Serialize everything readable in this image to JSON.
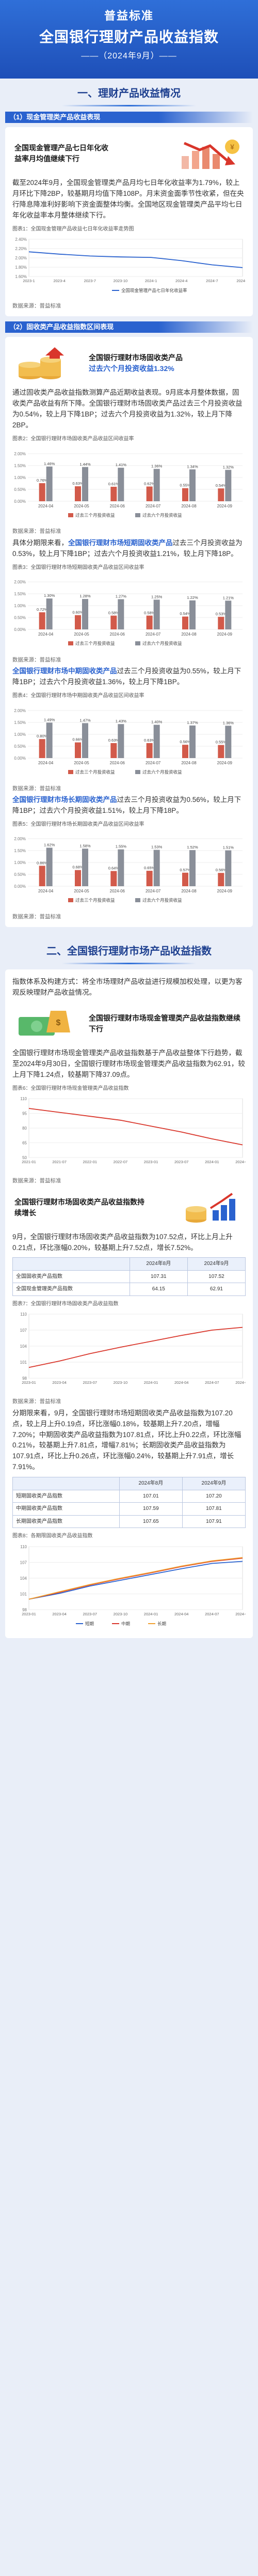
{
  "header": {
    "line1": "普益标准",
    "line2": "全国银行理财产品收益指数",
    "line3": "——（2024年9月）——"
  },
  "section1": {
    "title": "一、理财产品收益情况",
    "sub1": {
      "label": "（1）现金管理类产品收益表现",
      "feature": "全国现金管理产品七日年化收益率月均值继续下行",
      "body": "截至2024年9月，全国现金管理类产品月均七日年化收益率为1.79%，较上月环比下降2BP，较基期月均值下降108P。月末资金面季节性收紧，但在央行降息降准利好影响下资金面整体均衡。全国地区现金管理类产品平均七日年化收益率本月整体继续下行。",
      "fig_title": "图表1：全国现金管理产品收益七日年化收益率走势图",
      "source": "数据来源：普益标准"
    },
    "sub2": {
      "label": "（2）固收类产品收益指数区间表现",
      "feature_a": "全国银行理财市场固收类产品",
      "feature_b": "过去六个月投资收益1.32%",
      "body": "通过固收类产品收益指数测算产品近期收益表现。9月底本月整体数据，固收类产品收益有所下降。全国银行理财市场固收类产品过去三个月投资收益为0.54%，较上月下降1BP；过去六个月投资收益为1.32%，较上月下降2BP。",
      "fig_title": "图表2：全国银行理财市场固收类产品收益区间收益率",
      "source": "数据来源：普益标准",
      "short": {
        "body_pre": "具体分期限来看，",
        "body_hl": "全国银行理财市场短期固收类产品",
        "body_post": "过去三个月投资收益为0.53%，较上月下降1BP；过去六个月投资收益1.21%，较上月下降18P。",
        "fig_title": "图表3：全国银行理财市场短期固收类产品收益区间收益率",
        "source": "数据来源：普益标准"
      },
      "mid": {
        "body_pre": "",
        "body_hl": "全国银行理财市场中期固收类产品",
        "body_post": "过去三个月投资收益为0.55%，较上月下降1BP；过去六个月投资收益1.36%，较上月下降1BP。",
        "fig_title": "图表4：全国银行理财市场中期固收类产品收益区间收益率",
        "source": "数据来源：普益标准"
      },
      "long": {
        "body_pre": "",
        "body_hl": "全国银行理财市场长期固收类产品",
        "body_post": "过去三个月投资收益为0.56%，较上月下降1BP；过去六个月投资收益1.51%，较上月下降18P。",
        "fig_title": "图表5：全国银行理财市场长期固收类产品收益区间收益率",
        "source": "数据来源：普益标准"
      }
    }
  },
  "section2": {
    "title": "二、全国银行理财市场产品收益指数",
    "intro": "指数体系及构建方式：将全市场理财产品收益进行规模加权处理，以更为客观反映理财产品收益情况。",
    "feature": "全国银行理财市场现金管理类产品收益指数继续下行",
    "body": "全国银行理财市场现金管理类产品收益指数基于产品收益整体下行趋势，截至2024年9月30日，全国银行理财市场现金管理类产品收益指数为62.91，较上月下降1.24点，较基期下降37.09点。",
    "fig6_title": "图表6：全国银行理财市场现金管理类产品收益指数",
    "fig6_source": "数据来源：普益标准",
    "feature2": "全国银行理财市场固收类产品收益指数持续增长",
    "body2": "9月，全国银行理财市场固收类产品收益指数为107.52点，环比上月上升0.21点，环比涨幅0.20%，较基期上升7.52点，增长7.52%。",
    "fig7_title": "图表7：全国银行理财市场固收类产品收益指数",
    "fig7_source": "数据来源：普益标准",
    "body3": "分期限来看，9月，全国银行理财市场短期固收类产品收益指数为107.20点，较上月上升0.19点，环比涨幅0.18%，较基期上升7.20点，增幅7.20%；中期固收类产品收益指数为107.81点，环比上升0.22点，环比涨幅0.21%，较基期上升7.81点，增幅7.81%；长期固收类产品收益指数为107.91点，环比上升0.26点，环比涨幅0.24%，较基期上升7.91点，增长7.91%。",
    "fig8_title": "图表8：各期限固收类产品收益指数"
  },
  "table1": {
    "headers": [
      "",
      "2024年8月",
      "2024年9月"
    ],
    "rows": [
      [
        "全国固收类产品指数",
        "107.31",
        "107.52"
      ],
      [
        "全国现金管理类产品指数",
        "64.15",
        "62.91"
      ]
    ]
  },
  "table2": {
    "headers": [
      "",
      "2024年8月",
      "2024年9月"
    ],
    "rows": [
      [
        "短期固收类产品指数",
        "107.01",
        "107.20"
      ],
      [
        "中期固收类产品指数",
        "107.59",
        "107.81"
      ],
      [
        "长期固收类产品指数",
        "107.65",
        "107.91"
      ]
    ]
  },
  "chart_data": [
    {
      "type": "line",
      "title": "图表1：全国现金管理产品收益七日年化收益率走势图",
      "x": [
        "2023-1",
        "2023-4",
        "2023-7",
        "2023-10",
        "2024-1",
        "2024-4",
        "2024-7",
        "2024-9"
      ],
      "series": [
        {
          "name": "全国现金管理产品七日年化收益率",
          "values": [
            2.13,
            2.08,
            2.04,
            2.02,
            2.01,
            1.94,
            1.85,
            1.79
          ]
        }
      ],
      "ylim": [
        1.6,
        2.4
      ]
    },
    {
      "type": "bar",
      "title": "图表2：全国银行理财市场固收类产品收益区间收益率",
      "categories": [
        "2024-04",
        "2024-05",
        "2024-06",
        "2024-07",
        "2024-08",
        "2024-09"
      ],
      "series": [
        {
          "name": "过去三个月投资收益",
          "values": [
            0.76,
            0.63,
            0.61,
            0.62,
            0.55,
            0.54
          ]
        },
        {
          "name": "过去六个月投资收益",
          "values": [
            1.46,
            1.44,
            1.41,
            1.36,
            1.34,
            1.32
          ]
        }
      ]
    },
    {
      "type": "bar",
      "title": "图表3：全国银行理财市场短期固收类产品收益区间收益率",
      "categories": [
        "2024-04",
        "2024-05",
        "2024-06",
        "2024-07",
        "2024-08",
        "2024-09"
      ],
      "series": [
        {
          "name": "过去三个月投资收益",
          "values": [
            0.72,
            0.6,
            0.58,
            0.58,
            0.54,
            0.53
          ]
        },
        {
          "name": "过去六个月投资收益",
          "values": [
            1.3,
            1.28,
            1.27,
            1.25,
            1.22,
            1.21
          ]
        }
      ]
    },
    {
      "type": "bar",
      "title": "图表4：全国银行理财市场中期固收类产品收益区间收益率",
      "categories": [
        "2024-04",
        "2024-05",
        "2024-06",
        "2024-07",
        "2024-08",
        "2024-09"
      ],
      "series": [
        {
          "name": "过去三个月投资收益",
          "values": [
            0.8,
            0.66,
            0.63,
            0.63,
            0.56,
            0.55
          ]
        },
        {
          "name": "过去六个月投资收益",
          "values": [
            1.49,
            1.47,
            1.43,
            1.4,
            1.37,
            1.36
          ]
        }
      ]
    },
    {
      "type": "bar",
      "title": "图表5：全国银行理财市场长期固收类产品收益区间收益率",
      "categories": [
        "2024-04",
        "2024-05",
        "2024-06",
        "2024-07",
        "2024-08",
        "2024-09"
      ],
      "series": [
        {
          "name": "过去三个月投资收益",
          "values": [
            0.86,
            0.68,
            0.64,
            0.65,
            0.57,
            0.56
          ]
        },
        {
          "name": "过去六个月投资收益",
          "values": [
            1.62,
            1.58,
            1.55,
            1.53,
            1.52,
            1.51
          ]
        }
      ]
    },
    {
      "type": "line",
      "title": "图表6：全国银行理财市场现金管理类产品收益指数",
      "x": [
        "2021-01",
        "2021-07",
        "2022-01",
        "2022-07",
        "2023-01",
        "2023-07",
        "2024-01",
        "2024-09"
      ],
      "series": [
        {
          "name": "现金管理类产品收益指数",
          "values": [
            100,
            96,
            92,
            88,
            82,
            76,
            69,
            62.91
          ]
        }
      ],
      "ylim": [
        50,
        110
      ]
    },
    {
      "type": "line",
      "title": "图表7：全国银行理财市场固收类产品收益指数",
      "x": [
        "2023-01",
        "2023-04",
        "2023-07",
        "2023-10",
        "2024-01",
        "2024-04",
        "2024-07",
        "2024-09"
      ],
      "series": [
        {
          "name": "固收类产品收益指数",
          "values": [
            100,
            101.2,
            102.6,
            103.8,
            104.9,
            106.0,
            107.0,
            107.52
          ]
        }
      ],
      "ylim": [
        98,
        110
      ]
    },
    {
      "type": "line",
      "title": "图表8：各期限固收类产品收益指数",
      "x": [
        "2023-01",
        "2023-04",
        "2023-07",
        "2023-10",
        "2024-01",
        "2024-04",
        "2024-07",
        "2024-09"
      ],
      "series": [
        {
          "name": "短期",
          "values": [
            100,
            101.1,
            102.5,
            103.6,
            104.7,
            105.8,
            106.8,
            107.2
          ]
        },
        {
          "name": "中期",
          "values": [
            100,
            101.3,
            102.7,
            103.9,
            105.0,
            106.2,
            107.2,
            107.81
          ]
        },
        {
          "name": "长期",
          "values": [
            100,
            101.4,
            102.8,
            104.0,
            105.1,
            106.3,
            107.3,
            107.91
          ]
        }
      ],
      "ylim": [
        98,
        110
      ]
    }
  ],
  "colors": {
    "primary": "#2a62cf",
    "navy": "#1d3f8f",
    "red": "#c0392b",
    "gray": "#8f8f8f"
  }
}
